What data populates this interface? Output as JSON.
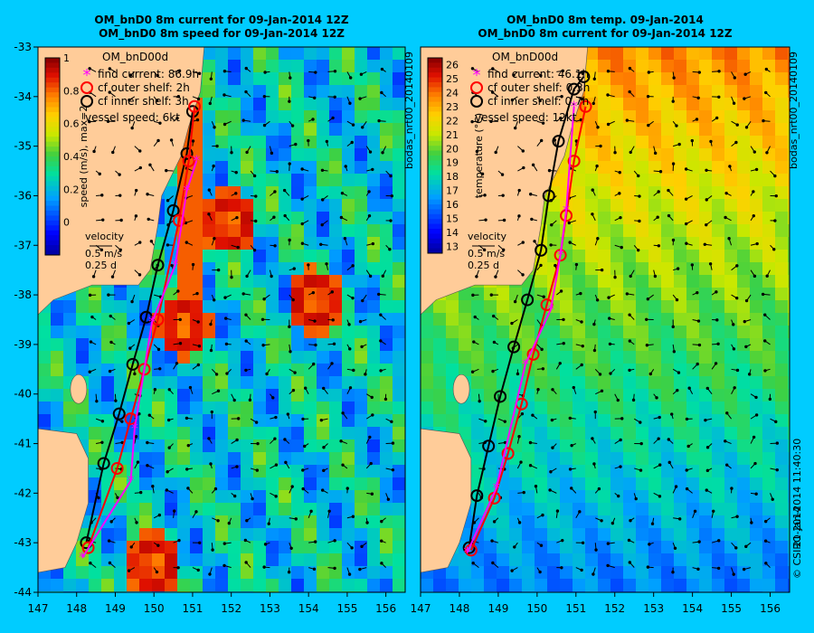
{
  "chart_data": [
    {
      "type": "heatmap",
      "title": "OM_bnD0 8m current for 09-Jan-2014 12Z",
      "subtitle": "OM_bnD0 8m speed for 09-Jan-2014 12Z",
      "model": "OM_bnD00d",
      "xlim": [
        147,
        156.5
      ],
      "ylim": [
        -44,
        -33
      ],
      "x_ticks": [
        "147",
        "148",
        "149",
        "150",
        "151",
        "152",
        "153",
        "154",
        "155",
        "156"
      ],
      "y_ticks": [
        "-33",
        "-34",
        "-35",
        "-36",
        "-37",
        "-38",
        "-39",
        "-40",
        "-41",
        "-42",
        "-43",
        "-44"
      ],
      "colorbar": {
        "label": "speed (m/s), max=2",
        "ticks": [
          "1",
          "0.8",
          "0.6",
          "0.4",
          "0.2",
          "0"
        ],
        "range": [
          -0.2,
          1.0
        ]
      },
      "legend": [
        {
          "label": "find current: 86.9h",
          "marker": "star",
          "color": "#ff00ff"
        },
        {
          "label": "cf outer shelf: 2h",
          "marker": "circle",
          "color": "#ff0000"
        },
        {
          "label": "cf inner shelf: 3h",
          "marker": "circle",
          "color": "#000000"
        }
      ],
      "vessel_speed": "vessel speed: 6kt",
      "velocity_key": {
        "title": "velocity",
        "line1": "0.5 m/s",
        "line2": "0.25 d"
      },
      "side_label": "bodas_nrt00_20140109",
      "series": [
        {
          "name": "cf inner shelf",
          "color": "#000000",
          "x": [
            148.25,
            148.7,
            149.1,
            149.45,
            149.8,
            150.1,
            150.5,
            150.85,
            151.0
          ],
          "y": [
            -43.0,
            -41.4,
            -40.4,
            -39.4,
            -38.45,
            -37.4,
            -36.3,
            -35.15,
            -34.3
          ]
        },
        {
          "name": "cf outer shelf",
          "color": "#ff0000",
          "x": [
            148.3,
            149.05,
            149.4,
            149.75,
            150.1,
            150.65,
            150.9,
            151.05
          ],
          "y": [
            -43.1,
            -41.5,
            -40.5,
            -39.5,
            -38.5,
            -36.5,
            -35.3,
            -34.2
          ]
        },
        {
          "name": "find current",
          "color": "#ff00ff",
          "x": [
            148.15,
            149.4,
            149.5,
            149.95,
            150.55,
            150.85,
            151.1
          ],
          "y": [
            -43.3,
            -41.75,
            -40.7,
            -38.55,
            -37.4,
            -35.9,
            -35.3
          ]
        }
      ],
      "features": [
        {
          "kind": "eddy",
          "x": 150.6,
          "y": -38.5,
          "strength": "high"
        },
        {
          "kind": "eddy",
          "x": 151.8,
          "y": -36.4,
          "strength": "high"
        },
        {
          "kind": "eddy",
          "x": 149.85,
          "y": -43.3,
          "strength": "high"
        },
        {
          "kind": "jet",
          "x": 154.0,
          "y": -38.0,
          "strength": "high"
        }
      ]
    },
    {
      "type": "heatmap",
      "title": "OM_bnD0 8m temp. 09-Jan-2014",
      "subtitle": "OM_bnD0 8m current for 09-Jan-2014 12Z",
      "model": "OM_bnD00d",
      "xlim": [
        147,
        156.5
      ],
      "ylim": [
        -44,
        -33
      ],
      "x_ticks": [
        "147",
        "148",
        "149",
        "150",
        "151",
        "152",
        "153",
        "154",
        "155",
        "156"
      ],
      "colorbar": {
        "label": "temperature (°C)",
        "ticks": [
          "26",
          "25",
          "24",
          "23",
          "22",
          "21",
          "20",
          "19",
          "18",
          "17",
          "16",
          "15",
          "14",
          "13"
        ],
        "range": [
          12.5,
          26.5
        ]
      },
      "legend": [
        {
          "label": "find current: 46.1h",
          "marker": "star",
          "color": "#ff00ff"
        },
        {
          "label": "cf outer shelf: 0.3h",
          "marker": "circle",
          "color": "#ff0000"
        },
        {
          "label": "cf inner shelf: 0.7h",
          "marker": "circle",
          "color": "#000000"
        }
      ],
      "vessel_speed": "vessel speed: 12kt",
      "velocity_key": {
        "title": "velocity",
        "line1": "0.5 m/s",
        "line2": "0.25 d"
      },
      "side_label": "bodas_nrt00_20140109",
      "side_label_2": "21-Jan-2014 11:40:30",
      "copyright": "© CSIRO 2014",
      "series": [
        {
          "name": "cf inner shelf",
          "color": "#000000",
          "x": [
            148.25,
            148.45,
            148.75,
            149.05,
            149.4,
            149.75,
            150.1,
            150.3,
            150.55,
            150.95,
            151.2
          ],
          "y": [
            -43.1,
            -42.05,
            -41.05,
            -40.05,
            -39.05,
            -38.1,
            -37.1,
            -36.0,
            -34.9,
            -33.85,
            -33.6
          ]
        },
        {
          "name": "cf outer shelf",
          "color": "#ff0000",
          "x": [
            148.3,
            148.9,
            149.25,
            149.6,
            149.9,
            150.25,
            150.6,
            150.75,
            150.95,
            151.25
          ],
          "y": [
            -43.15,
            -42.1,
            -41.2,
            -40.2,
            -39.2,
            -38.2,
            -37.2,
            -36.4,
            -35.3,
            -34.2
          ]
        },
        {
          "name": "find current",
          "color": "#ff00ff",
          "x": [
            148.2,
            148.95,
            149.7,
            150.35,
            150.6,
            150.75,
            150.95
          ],
          "y": [
            -43.2,
            -41.9,
            -39.4,
            -38.3,
            -37.2,
            -36.3,
            -34.2
          ]
        }
      ]
    }
  ]
}
